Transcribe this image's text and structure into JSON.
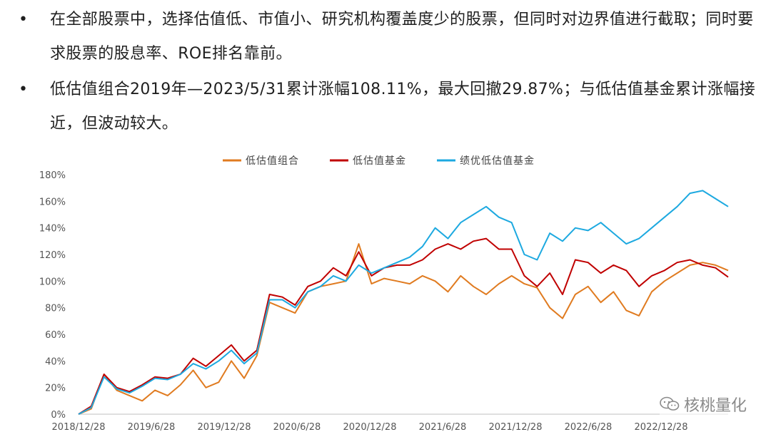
{
  "bullets": [
    {
      "marker": "•",
      "text": "在全部股票中，选择估值低、市值小、研究机构覆盖度少的股票，但同时对边界值进行截取；同时要求股票的股息率、ROE排名靠前。"
    },
    {
      "marker": "•",
      "text": "低估值组合2019年—2023/5/31累计涨幅108.11%，最大回撤29.87%；与低估值基金累计涨幅接近，但波动较大。"
    }
  ],
  "watermark": "核桃量化",
  "chart_data": {
    "type": "line",
    "title": "",
    "xlabel": "",
    "ylabel": "",
    "ylim": [
      0,
      180
    ],
    "yticks": [
      "0%",
      "20%",
      "40%",
      "60%",
      "80%",
      "100%",
      "120%",
      "140%",
      "160%",
      "180%"
    ],
    "xticks": [
      "2018/12/28",
      "2019/6/28",
      "2019/12/28",
      "2020/6/28",
      "2020/12/28",
      "2021/6/28",
      "2021/12/28",
      "2022/6/28",
      "2022/12/28"
    ],
    "x_start": "2018/12/28",
    "x_end": "2023/5/31",
    "legend_position": "top-center",
    "series": [
      {
        "name": "低估值组合",
        "color": "#E07B20",
        "values": [
          0,
          4,
          30,
          18,
          14,
          10,
          18,
          14,
          22,
          33,
          20,
          24,
          40,
          27,
          44,
          84,
          80,
          76,
          92,
          96,
          98,
          100,
          128,
          98,
          102,
          100,
          98,
          104,
          100,
          92,
          104,
          96,
          90,
          98,
          104,
          98,
          95,
          80,
          72,
          90,
          96,
          84,
          92,
          78,
          74,
          92,
          100,
          106,
          112,
          114,
          112,
          108
        ]
      },
      {
        "name": "低估值基金",
        "color": "#C00000",
        "values": [
          0,
          6,
          30,
          20,
          17,
          22,
          28,
          27,
          30,
          42,
          36,
          44,
          52,
          40,
          48,
          90,
          88,
          82,
          96,
          100,
          110,
          104,
          122,
          104,
          110,
          112,
          112,
          116,
          124,
          128,
          124,
          130,
          132,
          124,
          124,
          104,
          96,
          106,
          90,
          116,
          114,
          106,
          112,
          108,
          96,
          104,
          108,
          114,
          116,
          112,
          110,
          103
        ]
      },
      {
        "name": "绩优低估值基金",
        "color": "#1DA9E0",
        "values": [
          0,
          5,
          28,
          19,
          16,
          21,
          27,
          26,
          30,
          38,
          34,
          40,
          48,
          38,
          46,
          86,
          86,
          80,
          92,
          96,
          104,
          100,
          112,
          106,
          110,
          114,
          118,
          126,
          140,
          132,
          144,
          150,
          156,
          148,
          144,
          120,
          116,
          136,
          130,
          140,
          138,
          144,
          136,
          128,
          132,
          140,
          148,
          156,
          166,
          168,
          162,
          156
        ]
      }
    ]
  }
}
